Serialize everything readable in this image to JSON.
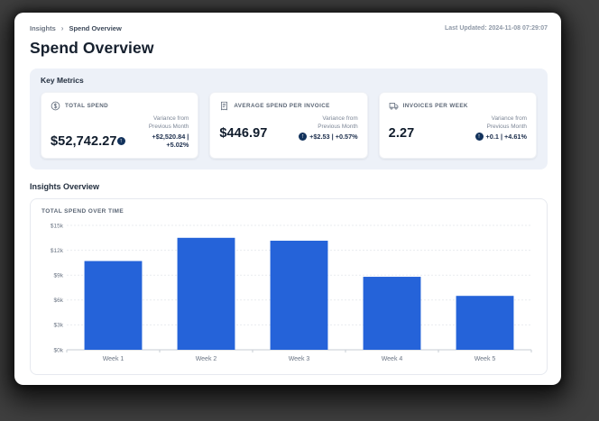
{
  "header": {
    "breadcrumb": {
      "root": "Insights",
      "separator": "›",
      "current": "Spend Overview"
    },
    "last_updated": "Last Updated: 2024-11-08 07:29:07",
    "page_title": "Spend Overview"
  },
  "key_metrics": {
    "section_title": "Key Metrics",
    "variance_caption_line1": "Variance from",
    "variance_caption_line2": "Previous Month",
    "variance_badge_glyph": "↑",
    "cards": [
      {
        "icon": "dollar-circle-icon",
        "label": "TOTAL SPEND",
        "value": "$52,742.27",
        "variance": "+$2,520.84 | +5.02%"
      },
      {
        "icon": "invoice-icon",
        "label": "AVERAGE SPEND PER INVOICE",
        "value": "$446.97",
        "variance": "+$2.53 | +0.57%"
      },
      {
        "icon": "truck-icon",
        "label": "INVOICES PER WEEK",
        "value": "2.27",
        "variance": "+0.1 | +4.61%"
      }
    ]
  },
  "insights": {
    "section_title": "Insights Overview"
  },
  "chart_data": {
    "type": "bar",
    "title": "TOTAL SPEND OVER TIME",
    "categories": [
      "Week 1",
      "Week 2",
      "Week 3",
      "Week 4",
      "Week 5"
    ],
    "values": [
      10700,
      13500,
      13150,
      8800,
      6500
    ],
    "ylim": [
      0,
      15000
    ],
    "y_ticks": [
      0,
      3000,
      6000,
      9000,
      12000,
      15000
    ],
    "y_tick_labels": [
      "$0k",
      "$3k",
      "$6k",
      "$9k",
      "$12k",
      "$15k"
    ],
    "grid": true,
    "legend": "none",
    "bar_color": "#2563d9"
  },
  "colors": {
    "bar_blue": "#2563d9",
    "variance_badge_navy": "#12325c",
    "metrics_section_bg": "#edf1f8",
    "grid_line": "#e9ebef",
    "axis_line": "#c7ccd3",
    "tick_text": "#6b7584"
  }
}
